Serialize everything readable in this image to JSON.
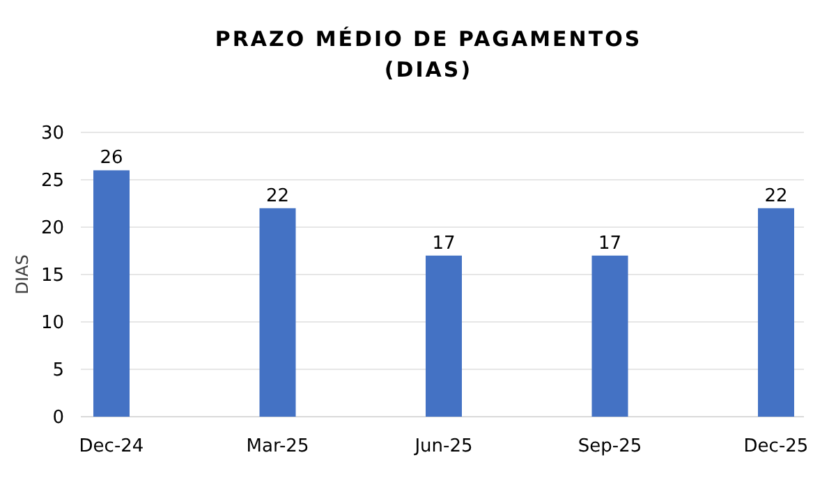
{
  "chart_data": {
    "type": "bar",
    "title": "PRAZO MÉDIO DE PAGAMENTOS\n(DIAS)",
    "ylabel": "DIAS",
    "categories": [
      "Dec-24",
      "Mar-25",
      "Jun-25",
      "Sep-25",
      "Dec-25"
    ],
    "values": [
      26,
      22,
      17,
      17,
      22
    ],
    "color": "#4472c4",
    "ylim": [
      0,
      30
    ],
    "yticks": [
      0,
      5,
      10,
      15,
      20,
      25,
      30
    ],
    "grid": "y",
    "data_labels": true
  }
}
